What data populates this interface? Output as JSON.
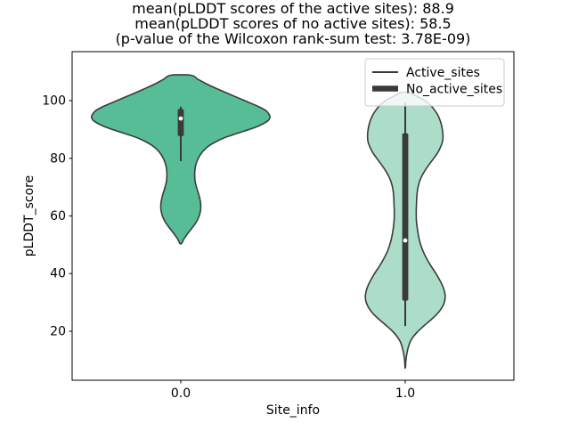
{
  "figure": {
    "background": "#ffffff",
    "title_lines": [
      "mean(pLDDT scores of the active sites): 88.9",
      "mean(pLDDT scores of no active sites): 58.5",
      "(p-value of the Wilcoxon rank-sum test: 3.78E-09)"
    ]
  },
  "chart_data": {
    "type": "violin",
    "title": "mean(pLDDT scores of the active sites): 88.9\nmean(pLDDT scores of no active sites): 58.5\n(p-value of the Wilcoxon rank-sum test: 3.78E-09)",
    "xlabel": "Site_info",
    "ylabel": "pLDDT_score",
    "xlim": [
      -0.484,
      1.484
    ],
    "ylim": [
      3,
      117
    ],
    "grid": false,
    "stats": {
      "mean_active_sites": 88.9,
      "mean_no_active_sites": 58.5,
      "wilcoxon_rank_sum_p_value": "3.78E-09"
    },
    "xticks": [
      {
        "pos": 0,
        "label": "0.0"
      },
      {
        "pos": 1,
        "label": "1.0"
      }
    ],
    "yticks": [
      {
        "pos": 100,
        "label": "100"
      },
      {
        "pos": 80,
        "label": "80"
      },
      {
        "pos": 60,
        "label": "60"
      },
      {
        "pos": 40,
        "label": "40"
      },
      {
        "pos": 20,
        "label": "20"
      }
    ],
    "legend": {
      "position": "upper right",
      "items": [
        {
          "label": "Active_sites",
          "line": "thin"
        },
        {
          "label": "No_active_sites",
          "line": "thick"
        }
      ]
    },
    "colors": {
      "active_fill": "#57bd97",
      "no_active_fill": "#abddc8",
      "violin_edge": "#3b3b3b",
      "inner_box": "#3a3a3a",
      "median_dot": "#ffffff",
      "spine": "#000000",
      "legend_border": "#cccccc"
    },
    "series": [
      {
        "name": "Active_sites",
        "x": 0,
        "fill": "#57bd97",
        "edge": "#3b3b3b",
        "median": 93.8,
        "q1": 87.7,
        "q3": 97.1,
        "whisker_low": 79,
        "whisker_high": 97.9,
        "kde_min": 50.5,
        "kde_max": 108.8,
        "profile": [
          [
            108.8,
            0.045
          ],
          [
            107.5,
            0.075
          ],
          [
            106,
            0.11
          ],
          [
            104,
            0.165
          ],
          [
            102,
            0.225
          ],
          [
            100,
            0.285
          ],
          [
            98,
            0.345
          ],
          [
            96.5,
            0.38
          ],
          [
            95,
            0.395
          ],
          [
            94,
            0.397
          ],
          [
            93,
            0.388
          ],
          [
            91.5,
            0.355
          ],
          [
            90,
            0.305
          ],
          [
            88.5,
            0.245
          ],
          [
            87,
            0.19
          ],
          [
            85.5,
            0.15
          ],
          [
            84,
            0.12
          ],
          [
            82,
            0.094
          ],
          [
            80,
            0.078
          ],
          [
            78,
            0.068
          ],
          [
            76,
            0.063
          ],
          [
            74,
            0.062
          ],
          [
            72,
            0.064
          ],
          [
            70,
            0.07
          ],
          [
            68,
            0.078
          ],
          [
            66,
            0.085
          ],
          [
            64,
            0.089
          ],
          [
            62,
            0.088
          ],
          [
            60,
            0.082
          ],
          [
            58,
            0.07
          ],
          [
            56,
            0.052
          ],
          [
            54,
            0.032
          ],
          [
            52,
            0.014
          ],
          [
            50.5,
            0.004
          ]
        ]
      },
      {
        "name": "No_active_sites",
        "x": 1,
        "fill": "#abddc8",
        "edge": "#3b3b3b",
        "median": 51.5,
        "q1": 30.6,
        "q3": 88.7,
        "whisker_low": 21.8,
        "whisker_high": 99.3,
        "kde_min": 7.5,
        "kde_max": 102.8,
        "profile": [
          [
            102.8,
            0.02
          ],
          [
            102,
            0.04
          ],
          [
            101,
            0.065
          ],
          [
            100,
            0.088
          ],
          [
            98.5,
            0.112
          ],
          [
            97,
            0.128
          ],
          [
            95,
            0.145
          ],
          [
            93,
            0.156
          ],
          [
            91,
            0.163
          ],
          [
            89,
            0.167
          ],
          [
            87,
            0.168
          ],
          [
            85.5,
            0.165
          ],
          [
            84,
            0.158
          ],
          [
            82,
            0.145
          ],
          [
            80,
            0.127
          ],
          [
            78,
            0.108
          ],
          [
            76,
            0.09
          ],
          [
            74,
            0.075
          ],
          [
            72,
            0.064
          ],
          [
            70,
            0.057
          ],
          [
            68,
            0.053
          ],
          [
            66,
            0.051
          ],
          [
            64,
            0.05
          ],
          [
            62,
            0.049
          ],
          [
            60,
            0.049
          ],
          [
            58,
            0.05
          ],
          [
            56,
            0.053
          ],
          [
            54,
            0.057
          ],
          [
            52,
            0.062
          ],
          [
            50,
            0.069
          ],
          [
            48,
            0.078
          ],
          [
            46,
            0.09
          ],
          [
            44,
            0.104
          ],
          [
            42,
            0.12
          ],
          [
            40,
            0.137
          ],
          [
            38,
            0.152
          ],
          [
            36,
            0.165
          ],
          [
            34,
            0.174
          ],
          [
            32,
            0.178
          ],
          [
            30,
            0.174
          ],
          [
            28,
            0.162
          ],
          [
            26,
            0.142
          ],
          [
            24,
            0.115
          ],
          [
            22,
            0.085
          ],
          [
            20,
            0.057
          ],
          [
            18,
            0.035
          ],
          [
            16,
            0.02
          ],
          [
            13,
            0.009
          ],
          [
            10,
            0.003
          ],
          [
            7.5,
            0.001
          ]
        ]
      }
    ]
  }
}
